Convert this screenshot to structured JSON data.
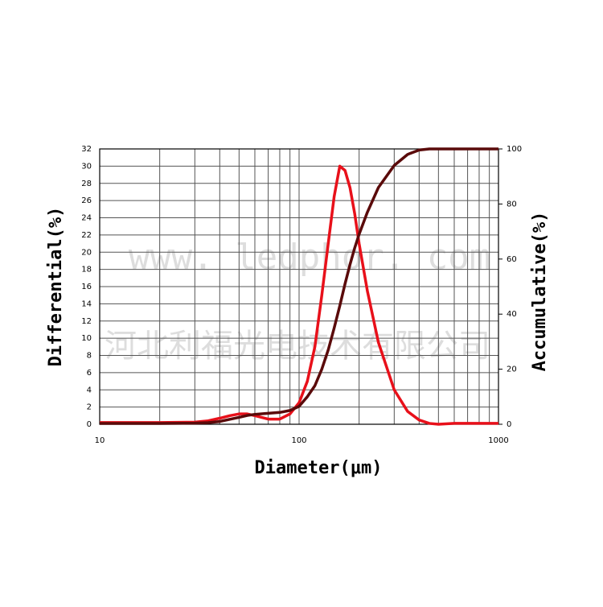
{
  "chart_data": {
    "type": "line",
    "xlabel": "Diameter(μm)",
    "ylabel": "Differential(%)",
    "y2label": "Accumulative(%)",
    "x_log": true,
    "grid": true,
    "xlim": [
      10,
      1000
    ],
    "xticks": [
      10,
      100,
      1000
    ],
    "x_minor_grid": [
      20,
      30,
      40,
      50,
      60,
      70,
      80,
      90,
      200,
      300,
      400,
      500,
      600,
      700,
      800,
      900
    ],
    "ylim": [
      0,
      32
    ],
    "yticks": [
      0,
      2,
      4,
      6,
      8,
      10,
      12,
      14,
      16,
      18,
      20,
      22,
      24,
      26,
      28,
      30,
      32
    ],
    "y2lim": [
      0,
      100
    ],
    "y2ticks": [
      0,
      20,
      40,
      60,
      80,
      100
    ],
    "x": [
      10,
      20,
      30,
      35,
      40,
      45,
      50,
      55,
      60,
      70,
      80,
      90,
      100,
      110,
      120,
      130,
      140,
      150,
      160,
      170,
      180,
      190,
      200,
      220,
      250,
      300,
      350,
      400,
      450,
      500,
      600,
      800,
      1000
    ],
    "series": [
      {
        "name": "Differential",
        "color": "#e8101a",
        "axis": "y",
        "values": [
          0.2,
          0.2,
          0.25,
          0.4,
          0.7,
          1.0,
          1.2,
          1.2,
          1.0,
          0.6,
          0.6,
          1.2,
          2.5,
          5,
          9,
          15,
          21,
          26.5,
          30,
          29.5,
          27.5,
          24.5,
          21,
          15.5,
          9.5,
          4,
          1.5,
          0.5,
          0.1,
          0,
          0.1,
          0.1,
          0.1
        ]
      },
      {
        "name": "Accumulative",
        "color": "#5a0a0a",
        "axis": "y2",
        "values": [
          0.3,
          0.3,
          0.4,
          0.6,
          1,
          1.8,
          2.5,
          3.2,
          3.6,
          4,
          4.3,
          5,
          6.5,
          10,
          14,
          20,
          27,
          35,
          43,
          51,
          58,
          64,
          69,
          77,
          86,
          94,
          98,
          99.6,
          100,
          100,
          100,
          100,
          100
        ]
      }
    ],
    "watermarks": [
      "www. ledphor. com",
      "河北利福光电技术有限公司"
    ]
  }
}
